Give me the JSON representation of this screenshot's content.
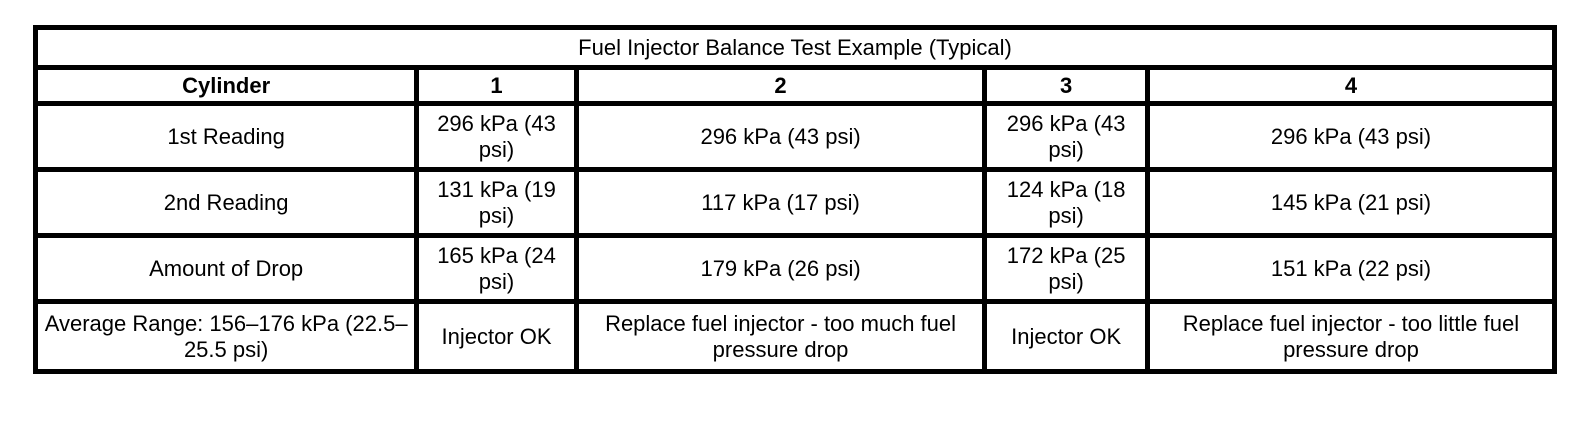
{
  "table": {
    "title": "Fuel Injector Balance Test Example (Typical)",
    "columns": [
      "Cylinder",
      "1",
      "2",
      "3",
      "4"
    ],
    "rows": [
      {
        "label": "1st Reading",
        "values": [
          "296 kPa (43 psi)",
          "296 kPa (43 psi)",
          "296 kPa (43 psi)",
          "296 kPa (43 psi)"
        ]
      },
      {
        "label": "2nd Reading",
        "values": [
          "131 kPa (19 psi)",
          "117 kPa (17 psi)",
          "124 kPa (18 psi)",
          "145 kPa (21 psi)"
        ]
      },
      {
        "label": "Amount of Drop",
        "values": [
          "165 kPa (24 psi)",
          "179 kPa (26 psi)",
          "172 kPa (25 psi)",
          "151 kPa (22 psi)"
        ]
      },
      {
        "label": "Average Range: 156–176 kPa (22.5–25.5 psi)",
        "values": [
          "Injector OK",
          "Replace fuel injector - too much fuel pressure drop",
          "Injector OK",
          "Replace fuel injector - too little fuel pressure drop"
        ]
      }
    ],
    "colors": {
      "border": "#000000",
      "text": "#000000",
      "background": "#ffffff"
    }
  }
}
